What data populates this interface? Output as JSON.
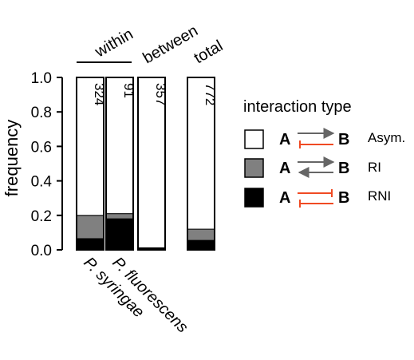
{
  "chart_data": {
    "type": "bar",
    "stacked": true,
    "ylabel": "frequency",
    "ylim": [
      0,
      1
    ],
    "yticks": [
      "0.0",
      "0.2",
      "0.4",
      "0.6",
      "0.8",
      "1.0"
    ],
    "categories": [
      "P. syringae",
      "P. fluorescens",
      "",
      ""
    ],
    "group_labels": [
      "within",
      "between",
      "total"
    ],
    "counts": [
      "324",
      "91",
      "357",
      "772"
    ],
    "series": [
      {
        "name": "RNI",
        "values": [
          0.065,
          0.18,
          0.012,
          0.055
        ]
      },
      {
        "name": "RI",
        "values": [
          0.135,
          0.03,
          0.0,
          0.065
        ]
      },
      {
        "name": "Asym.",
        "values": [
          0.8,
          0.79,
          0.988,
          0.88
        ]
      }
    ],
    "legend": {
      "title": "interaction type",
      "position": "right",
      "node_a": "A",
      "node_b": "B",
      "items": [
        "Asym.",
        "RI",
        "RNI"
      ]
    },
    "colors": {
      "Asym.": "#ffffff",
      "RI": "#808080",
      "RNI": "#000000",
      "activation_arrow": "#666666",
      "inhibition_arrow": "#f04a23"
    }
  }
}
